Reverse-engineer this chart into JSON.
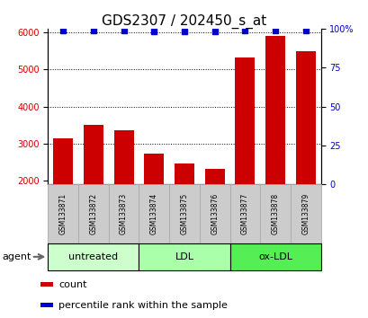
{
  "title": "GDS2307 / 202450_s_at",
  "samples": [
    "GSM133871",
    "GSM133872",
    "GSM133873",
    "GSM133874",
    "GSM133875",
    "GSM133876",
    "GSM133877",
    "GSM133878",
    "GSM133879"
  ],
  "counts": [
    3150,
    3500,
    3370,
    2720,
    2460,
    2320,
    5330,
    5900,
    5480
  ],
  "percentiles": [
    99,
    99,
    99,
    98,
    98,
    98,
    99,
    99,
    99
  ],
  "bar_color": "#cc0000",
  "dot_color": "#0000cc",
  "ylim_left": [
    1900,
    6100
  ],
  "ylim_right": [
    0,
    100
  ],
  "yticks_left": [
    2000,
    3000,
    4000,
    5000,
    6000
  ],
  "yticks_right": [
    0,
    25,
    50,
    75,
    100
  ],
  "ytick_labels_right": [
    "0",
    "25",
    "50",
    "75",
    "100%"
  ],
  "grid_values": [
    3000,
    4000,
    5000,
    6000
  ],
  "groups": [
    {
      "label": "untreated",
      "start": 0,
      "end": 3,
      "color": "#ccffcc"
    },
    {
      "label": "LDL",
      "start": 3,
      "end": 6,
      "color": "#aaffaa"
    },
    {
      "label": "ox-LDL",
      "start": 6,
      "end": 9,
      "color": "#55ee55"
    }
  ],
  "agent_label": "agent",
  "legend_count_label": "count",
  "legend_percentile_label": "percentile rank within the sample",
  "title_fontsize": 11,
  "tick_fontsize": 7,
  "gray_box_color": "#cccccc",
  "gray_box_edge": "#aaaaaa"
}
